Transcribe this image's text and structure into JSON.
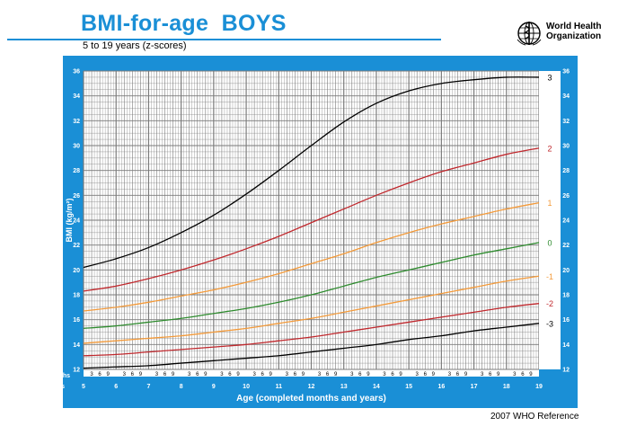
{
  "header": {
    "title": "BMI-for-age  BOYS",
    "subtitle": "5 to 19 years (z-scores)",
    "logo_text_line1": "World Health",
    "logo_text_line2": "Organization",
    "logo_icon": "who-emblem-icon"
  },
  "footer": {
    "reference": "2007  WHO Reference"
  },
  "colors": {
    "frame": "#1a8fd6",
    "title": "#1a8fd6",
    "z3": "#000000",
    "z2": "#c0282d",
    "z1": "#f39a3a",
    "z0": "#2e8b2e"
  },
  "chart_data": {
    "type": "line",
    "xlabel": "Age (completed months and years)",
    "ylabel": "BMI (kg/m²)",
    "row_label_months": "Months",
    "row_label_years": "Years",
    "xlim": [
      5,
      19
    ],
    "ylim": [
      12,
      36
    ],
    "x_ticks": [
      "5",
      "6",
      "7",
      "8",
      "9",
      "10",
      "11",
      "12",
      "13",
      "14",
      "15",
      "16",
      "17",
      "18",
      "19"
    ],
    "month_ticks": [
      "3",
      "6",
      "9"
    ],
    "y_ticks": [
      "12",
      "14",
      "16",
      "18",
      "20",
      "22",
      "24",
      "26",
      "28",
      "30",
      "32",
      "34",
      "36"
    ],
    "grid": true,
    "x": [
      5,
      6,
      7,
      8,
      9,
      10,
      11,
      12,
      13,
      14,
      15,
      16,
      17,
      18,
      19
    ],
    "series": [
      {
        "name": "3",
        "color": "#000000",
        "values": [
          20.2,
          20.9,
          21.8,
          23.0,
          24.4,
          26.1,
          28.0,
          30.0,
          31.9,
          33.4,
          34.4,
          35.0,
          35.3,
          35.5,
          35.5
        ]
      },
      {
        "name": "2",
        "color": "#c0282d",
        "values": [
          18.3,
          18.7,
          19.3,
          20.0,
          20.8,
          21.7,
          22.7,
          23.8,
          24.9,
          26.0,
          27.0,
          27.9,
          28.6,
          29.3,
          29.8
        ]
      },
      {
        "name": "1",
        "color": "#f39a3a",
        "values": [
          16.7,
          17.0,
          17.4,
          17.9,
          18.4,
          19.0,
          19.7,
          20.5,
          21.3,
          22.2,
          23.0,
          23.7,
          24.3,
          24.9,
          25.4
        ]
      },
      {
        "name": "0",
        "color": "#2e8b2e",
        "values": [
          15.3,
          15.5,
          15.8,
          16.1,
          16.5,
          16.9,
          17.4,
          18.0,
          18.7,
          19.4,
          20.0,
          20.6,
          21.2,
          21.7,
          22.2
        ]
      },
      {
        "name": "-1",
        "color": "#f39a3a",
        "values": [
          14.1,
          14.3,
          14.5,
          14.7,
          15.0,
          15.3,
          15.7,
          16.1,
          16.6,
          17.1,
          17.6,
          18.1,
          18.6,
          19.1,
          19.5
        ]
      },
      {
        "name": "-2",
        "color": "#c0282d",
        "values": [
          13.1,
          13.2,
          13.4,
          13.6,
          13.8,
          14.0,
          14.3,
          14.6,
          15.0,
          15.4,
          15.8,
          16.2,
          16.6,
          17.0,
          17.3
        ]
      },
      {
        "name": "-3",
        "color": "#000000",
        "values": [
          12.1,
          12.2,
          12.3,
          12.5,
          12.7,
          12.9,
          13.1,
          13.4,
          13.7,
          14.0,
          14.4,
          14.7,
          15.1,
          15.4,
          15.7
        ]
      }
    ]
  }
}
